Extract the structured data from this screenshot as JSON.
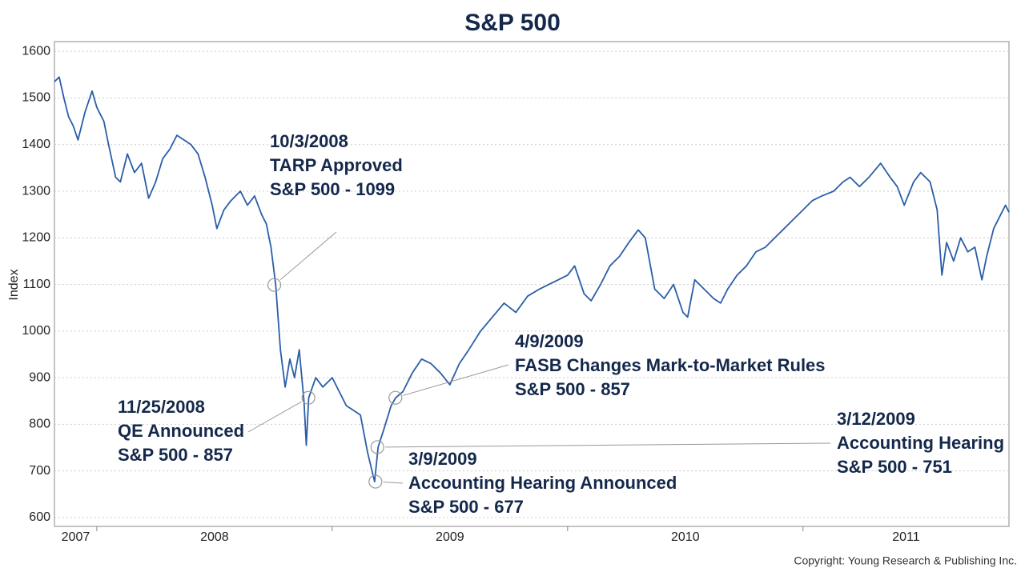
{
  "chart_data": {
    "type": "line",
    "title": "S&P 500",
    "y_label": "Index",
    "copyright": "Copyright: Young Research & Publishing Inc.",
    "xlim": [
      2007.82,
      2011.875
    ],
    "xticks": [
      2008,
      2009,
      2010,
      2011
    ],
    "x_labels": [
      2007,
      2008,
      2009,
      2010,
      2011
    ],
    "ylim": [
      581,
      1621
    ],
    "yticks": [
      600,
      700,
      800,
      900,
      1000,
      1100,
      1200,
      1300,
      1400,
      1500,
      1600
    ],
    "grid": true,
    "series": [
      {
        "name": "S&P 500",
        "color": "#2a5ea8",
        "x": [
          2007.82,
          2007.84,
          2007.86,
          2007.88,
          2007.9,
          2007.92,
          2007.95,
          2007.98,
          2008.0,
          2008.03,
          2008.05,
          2008.08,
          2008.1,
          2008.13,
          2008.16,
          2008.19,
          2008.22,
          2008.25,
          2008.28,
          2008.31,
          2008.34,
          2008.37,
          2008.4,
          2008.43,
          2008.46,
          2008.49,
          2008.51,
          2008.54,
          2008.57,
          2008.61,
          2008.64,
          2008.67,
          2008.7,
          2008.72,
          2008.74,
          2008.76,
          2008.78,
          2008.8,
          2008.82,
          2008.84,
          2008.86,
          2008.88,
          2008.89,
          2008.9,
          2008.93,
          2008.96,
          2009.0,
          2009.03,
          2009.06,
          2009.09,
          2009.12,
          2009.15,
          2009.18,
          2009.195,
          2009.22,
          2009.25,
          2009.27,
          2009.3,
          2009.34,
          2009.38,
          2009.42,
          2009.46,
          2009.5,
          2009.54,
          2009.58,
          2009.63,
          2009.68,
          2009.73,
          2009.78,
          2009.83,
          2009.88,
          2009.92,
          2009.96,
          2010.0,
          2010.03,
          2010.07,
          2010.1,
          2010.14,
          2010.18,
          2010.22,
          2010.26,
          2010.3,
          2010.33,
          2010.37,
          2010.41,
          2010.45,
          2010.49,
          2010.51,
          2010.54,
          2010.58,
          2010.62,
          2010.65,
          2010.68,
          2010.72,
          2010.76,
          2010.8,
          2010.84,
          2010.88,
          2010.92,
          2010.96,
          2011.0,
          2011.04,
          2011.08,
          2011.13,
          2011.17,
          2011.2,
          2011.24,
          2011.28,
          2011.33,
          2011.37,
          2011.4,
          2011.43,
          2011.47,
          2011.5,
          2011.54,
          2011.57,
          2011.59,
          2011.61,
          2011.64,
          2011.67,
          2011.7,
          2011.73,
          2011.76,
          2011.78,
          2011.81,
          2011.84,
          2011.86,
          2011.875
        ],
        "values": [
          1535,
          1545,
          1500,
          1460,
          1440,
          1410,
          1470,
          1515,
          1480,
          1450,
          1400,
          1330,
          1320,
          1380,
          1340,
          1360,
          1285,
          1320,
          1370,
          1390,
          1420,
          1410,
          1400,
          1380,
          1330,
          1270,
          1220,
          1260,
          1280,
          1300,
          1270,
          1290,
          1250,
          1230,
          1180,
          1099,
          960,
          880,
          940,
          900,
          960,
          850,
          755,
          857,
          900,
          880,
          900,
          870,
          840,
          830,
          820,
          740,
          677,
          751,
          790,
          840,
          857,
          870,
          910,
          940,
          930,
          910,
          885,
          930,
          960,
          1000,
          1030,
          1060,
          1040,
          1075,
          1090,
          1100,
          1110,
          1120,
          1140,
          1080,
          1065,
          1100,
          1140,
          1160,
          1190,
          1217,
          1200,
          1090,
          1070,
          1100,
          1040,
          1030,
          1110,
          1090,
          1070,
          1060,
          1090,
          1120,
          1140,
          1170,
          1180,
          1200,
          1220,
          1240,
          1260,
          1280,
          1290,
          1300,
          1320,
          1330,
          1310,
          1330,
          1360,
          1330,
          1310,
          1270,
          1320,
          1340,
          1320,
          1260,
          1120,
          1190,
          1150,
          1200,
          1170,
          1180,
          1110,
          1160,
          1220,
          1250,
          1270,
          1255
        ]
      }
    ],
    "annotations": [
      {
        "date": "10/3/2008",
        "text": "TARP Approved",
        "label": "S&P 500 - 1099",
        "value": 1099
      },
      {
        "date": "11/25/2008",
        "text": "QE Announced",
        "label": "S&P 500 - 857",
        "value": 857
      },
      {
        "date": "3/9/2009",
        "text": "Accounting Hearing Announced",
        "label": "S&P 500 - 677",
        "value": 677
      },
      {
        "date": "4/9/2009",
        "text": "FASB Changes Mark-to-Market Rules",
        "label": "S&P 500 - 857",
        "value": 857
      },
      {
        "date": "3/12/2009",
        "text": "Accounting Hearing",
        "label": "S&P 500 - 751",
        "value": 751
      }
    ]
  }
}
